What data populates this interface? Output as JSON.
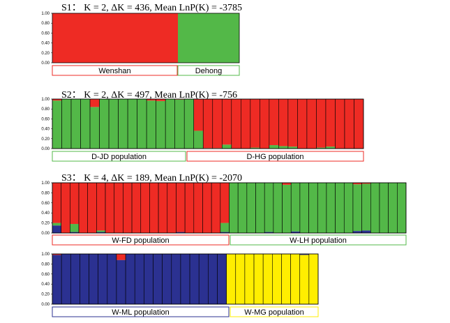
{
  "colors": {
    "red": "#ee2b24",
    "green": "#53b848",
    "blue": "#2b3191",
    "yellow": "#ffee00",
    "border": "#000000"
  },
  "chart_data": [
    {
      "id": "S1",
      "type": "bar",
      "stacked": true,
      "title": "S1：  K = 2, ΔK = 436, Mean LnP(K) = -3785",
      "ylim": [
        0,
        1
      ],
      "ytick_labels": [
        "0.00",
        "0.20",
        "0.40",
        "0.60",
        "0.80",
        "1.00"
      ],
      "clusters": [
        "red",
        "green"
      ],
      "populations": [
        {
          "name": "Wenshan",
          "color": "red",
          "individuals": 1,
          "rows": [
            [
              1.0,
              0.0
            ]
          ]
        },
        {
          "name": "Dehong",
          "color": "green",
          "individuals": 1,
          "rows": [
            [
              0.0,
              1.0
            ]
          ]
        }
      ]
    },
    {
      "id": "S2",
      "type": "bar",
      "stacked": true,
      "title": "S2：  K = 2, ΔK = 497, Mean LnP(K) = -756",
      "ylim": [
        0,
        1
      ],
      "ytick_labels": [
        "0.00",
        "0.20",
        "0.40",
        "0.60",
        "0.80",
        "1.00"
      ],
      "clusters": [
        "red",
        "green"
      ],
      "populations": [
        {
          "name": "D-JD population",
          "color": "green",
          "individuals": 15,
          "rows": [
            [
              0.03,
              0.97
            ],
            [
              0.0,
              1.0
            ],
            [
              0.0,
              1.0
            ],
            [
              0.0,
              1.0
            ],
            [
              0.16,
              0.84
            ],
            [
              0.0,
              1.0
            ],
            [
              0.0,
              1.0
            ],
            [
              0.0,
              1.0
            ],
            [
              0.0,
              1.0
            ],
            [
              0.0,
              1.0
            ],
            [
              0.03,
              0.97
            ],
            [
              0.04,
              0.96
            ],
            [
              0.0,
              1.0
            ],
            [
              0.01,
              0.99
            ],
            [
              0.0,
              1.0
            ]
          ]
        },
        {
          "name": "D-HG population",
          "color": "red",
          "individuals": 18,
          "rows": [
            [
              0.64,
              0.36
            ],
            [
              0.99,
              0.01
            ],
            [
              0.99,
              0.01
            ],
            [
              0.92,
              0.08
            ],
            [
              1.0,
              0.0
            ],
            [
              1.0,
              0.0
            ],
            [
              0.98,
              0.02
            ],
            [
              1.0,
              0.0
            ],
            [
              0.93,
              0.07
            ],
            [
              0.95,
              0.05
            ],
            [
              0.96,
              0.04
            ],
            [
              1.0,
              0.0
            ],
            [
              1.0,
              0.0
            ],
            [
              0.98,
              0.02
            ],
            [
              0.96,
              0.04
            ],
            [
              1.0,
              0.0
            ],
            [
              1.0,
              0.0
            ],
            [
              1.0,
              0.0
            ]
          ]
        }
      ]
    },
    {
      "id": "S3",
      "type": "bar",
      "stacked": true,
      "title": "S3：  K = 4, ΔK = 189, Mean LnP(K) = -2070",
      "ylim": [
        0,
        1
      ],
      "ytick_labels": [
        "0.00",
        "0.20",
        "0.40",
        "0.60",
        "0.80",
        "1.00"
      ],
      "clusters": [
        "red",
        "green",
        "blue",
        "yellow"
      ],
      "populations": [
        {
          "name": "W-FD population",
          "color": "red",
          "individuals": 20,
          "rows": [
            [
              0.8,
              0.05,
              0.15,
              0
            ],
            [
              1,
              0,
              0,
              0
            ],
            [
              0.82,
              0.16,
              0.02,
              0
            ],
            [
              1,
              0,
              0,
              0
            ],
            [
              1,
              0,
              0,
              0
            ],
            [
              0.95,
              0.03,
              0.02,
              0
            ],
            [
              1,
              0,
              0,
              0
            ],
            [
              1,
              0,
              0,
              0
            ],
            [
              1,
              0,
              0,
              0
            ],
            [
              1,
              0,
              0,
              0
            ],
            [
              1,
              0,
              0,
              0
            ],
            [
              1,
              0,
              0,
              0
            ],
            [
              1,
              0,
              0,
              0
            ],
            [
              1,
              0,
              0,
              0
            ],
            [
              0.98,
              0,
              0.02,
              0
            ],
            [
              1,
              0,
              0,
              0
            ],
            [
              1,
              0,
              0,
              0
            ],
            [
              1,
              0,
              0,
              0
            ],
            [
              1,
              0,
              0,
              0
            ],
            [
              0.8,
              0.18,
              0.02,
              0
            ]
          ]
        },
        {
          "name": "W-LH population",
          "color": "green",
          "individuals": 20,
          "rows": [
            [
              0,
              1,
              0,
              0
            ],
            [
              0,
              1,
              0,
              0
            ],
            [
              0,
              1,
              0,
              0
            ],
            [
              0,
              1,
              0,
              0
            ],
            [
              0,
              0.98,
              0.02,
              0
            ],
            [
              0,
              1,
              0,
              0
            ],
            [
              0.04,
              0.96,
              0,
              0
            ],
            [
              0,
              0.97,
              0.03,
              0
            ],
            [
              0,
              1,
              0,
              0
            ],
            [
              0,
              1,
              0,
              0
            ],
            [
              0,
              1,
              0,
              0
            ],
            [
              0,
              1,
              0,
              0
            ],
            [
              0,
              1,
              0,
              0
            ],
            [
              0,
              1,
              0,
              0
            ],
            [
              0.03,
              0.93,
              0.04,
              0
            ],
            [
              0.02,
              0.93,
              0.05,
              0
            ],
            [
              0,
              1,
              0,
              0
            ],
            [
              0,
              1,
              0,
              0
            ],
            [
              0,
              1,
              0,
              0
            ],
            [
              0,
              1,
              0,
              0
            ]
          ]
        },
        {
          "name": "W-ML population",
          "color": "blue",
          "individuals": 19,
          "rows": [
            [
              0.02,
              0,
              0.98,
              0
            ],
            [
              0,
              0,
              1,
              0
            ],
            [
              0,
              0,
              1,
              0
            ],
            [
              0,
              0,
              1,
              0
            ],
            [
              0,
              0,
              1,
              0
            ],
            [
              0,
              0,
              1,
              0
            ],
            [
              0,
              0,
              1,
              0
            ],
            [
              0.12,
              0,
              0.88,
              0
            ],
            [
              0,
              0,
              1,
              0
            ],
            [
              0,
              0,
              1,
              0
            ],
            [
              0,
              0,
              1,
              0
            ],
            [
              0,
              0,
              1,
              0
            ],
            [
              0,
              0,
              1,
              0
            ],
            [
              0,
              0,
              1,
              0
            ],
            [
              0,
              0,
              1,
              0
            ],
            [
              0,
              0,
              1,
              0
            ],
            [
              0,
              0,
              1,
              0
            ],
            [
              0,
              0,
              1,
              0
            ],
            [
              0,
              0,
              1,
              0
            ]
          ]
        },
        {
          "name": "W-MG population",
          "color": "yellow",
          "individuals": 10,
          "rows": [
            [
              0,
              0,
              0,
              1
            ],
            [
              0,
              0,
              0,
              1
            ],
            [
              0,
              0,
              0,
              1
            ],
            [
              0,
              0,
              0,
              1
            ],
            [
              0,
              0,
              0,
              1
            ],
            [
              0,
              0,
              0,
              1
            ],
            [
              0,
              0,
              0,
              1
            ],
            [
              0,
              0,
              0,
              1
            ],
            [
              0,
              0,
              0.02,
              0.98
            ],
            [
              0,
              0,
              0,
              1
            ]
          ]
        }
      ]
    }
  ]
}
